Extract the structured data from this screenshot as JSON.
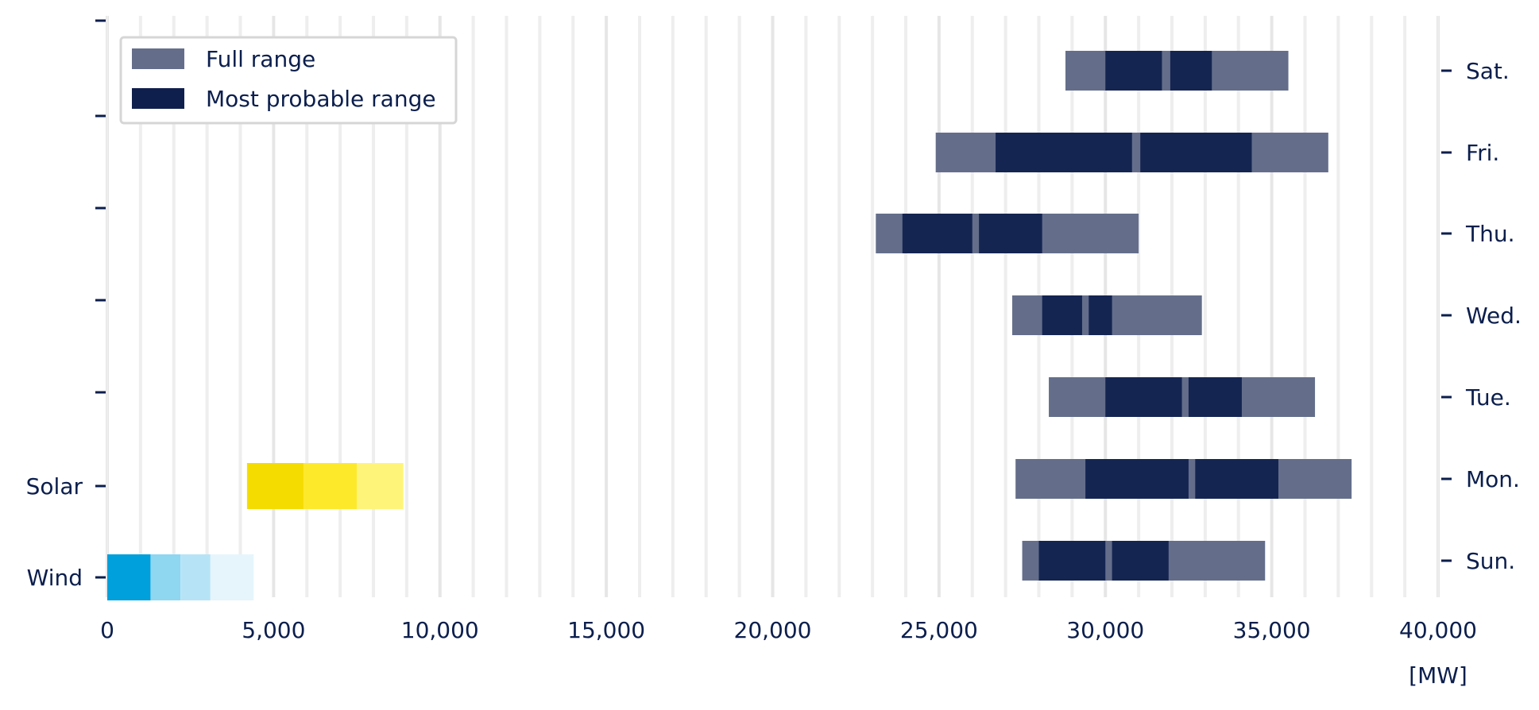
{
  "chart_data": {
    "type": "bar",
    "orientation": "horizontal",
    "xlabel": "[MW]",
    "xlim": [
      0,
      40000
    ],
    "xticks": [
      0,
      5000,
      10000,
      15000,
      20000,
      25000,
      30000,
      35000,
      40000
    ],
    "xtick_labels": [
      "0",
      "5,000",
      "10,000",
      "15,000",
      "20,000",
      "25,000",
      "30,000",
      "35,000",
      "40,000"
    ],
    "grid": true,
    "legend_position": "top-left",
    "legend": [
      {
        "name": "Full range",
        "color": "#646e8b"
      },
      {
        "name": "Most probable range",
        "color": "#0f1f4d"
      }
    ],
    "left_axis_labels": [
      "Solar",
      "Wind"
    ],
    "right_axis_labels": [
      "Sat.",
      "Fri.",
      "Thu.",
      "Wed.",
      "Tue.",
      "Mon.",
      "Sun."
    ],
    "demand": [
      {
        "day": "Sat.",
        "full": [
          28800,
          35500
        ],
        "probable": [
          [
            30000,
            31700
          ],
          [
            31950,
            33200
          ]
        ]
      },
      {
        "day": "Fri.",
        "full": [
          24900,
          36700
        ],
        "probable": [
          [
            26700,
            30800
          ],
          [
            31050,
            34400
          ]
        ]
      },
      {
        "day": "Thu.",
        "full": [
          23100,
          31000
        ],
        "probable": [
          [
            23900,
            26000
          ],
          [
            26200,
            28100
          ]
        ]
      },
      {
        "day": "Wed.",
        "full": [
          27200,
          32900
        ],
        "probable": [
          [
            28100,
            29300
          ],
          [
            29500,
            30200
          ]
        ]
      },
      {
        "day": "Tue.",
        "full": [
          28300,
          36300
        ],
        "probable": [
          [
            30000,
            32300
          ],
          [
            32500,
            34100
          ]
        ]
      },
      {
        "day": "Mon.",
        "full": [
          27300,
          37400
        ],
        "probable": [
          [
            29400,
            32500
          ],
          [
            32700,
            35200
          ]
        ]
      },
      {
        "day": "Sun.",
        "full": [
          27500,
          34800
        ],
        "probable": [
          [
            28000,
            30000
          ],
          [
            30200,
            31900
          ]
        ]
      }
    ],
    "renewables": [
      {
        "name": "Solar",
        "segments": [
          {
            "range": [
              4200,
              5900
            ],
            "color": "#f5dc00"
          },
          {
            "range": [
              5900,
              7500
            ],
            "color": "#fde92a"
          },
          {
            "range": [
              7500,
              8900
            ],
            "color": "#fff47a"
          }
        ]
      },
      {
        "name": "Wind",
        "segments": [
          {
            "range": [
              0,
              1300
            ],
            "color": "#00a0dc"
          },
          {
            "range": [
              1300,
              2200
            ],
            "color": "#8fd6f1"
          },
          {
            "range": [
              2200,
              3100
            ],
            "color": "#b6e4f6"
          },
          {
            "range": [
              3100,
              4400
            ],
            "color": "#e6f5fc"
          }
        ]
      }
    ]
  }
}
